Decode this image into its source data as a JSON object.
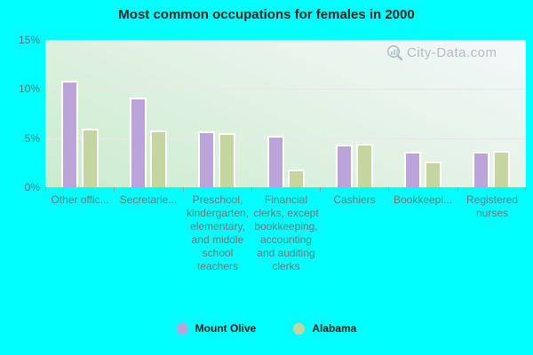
{
  "title": "Most common occupations for females in 2000",
  "watermark": {
    "text": "City-Data.com",
    "icon": "magnifier-with-bars"
  },
  "colors": {
    "background": "#00ffff",
    "mount_olive_bar": "#bba4da",
    "alabama_bar": "#c4d59f",
    "bar_border": "#ffffff",
    "gridline": "#eee3ee",
    "axis_text": "#6d7878",
    "title_text": "#1b2424",
    "legend_text": "#101c1c",
    "watermark_text": "#a3aeb9"
  },
  "chart_data": {
    "type": "bar",
    "title": "Most common occupations for females in 2000",
    "categories": [
      "Other offic...",
      "Secretarie...",
      "Preschool, kindergarten, elementary, and middle school teachers",
      "Financial clerks, except bookkeeping, accounting and auditing clerks",
      "Cashiers",
      "Bookkeepi...",
      "Registered nurses"
    ],
    "series": [
      {
        "name": "Mount Olive",
        "color": "#bba4da",
        "values": [
          10.8,
          9.1,
          5.7,
          5.2,
          4.3,
          3.6,
          3.6
        ]
      },
      {
        "name": "Alabama",
        "color": "#c4d59f",
        "values": [
          6.0,
          5.8,
          5.5,
          1.8,
          4.4,
          2.6,
          3.7
        ]
      }
    ],
    "xlabel": "",
    "ylabel": "",
    "ylim": [
      0,
      15
    ],
    "y_ticks": [
      "0%",
      "5%",
      "10%",
      "15%"
    ],
    "gridlines_at": [
      5,
      10
    ],
    "grid": "horizontal",
    "legend_position": "bottom"
  },
  "legend": {
    "items": [
      {
        "label": "Mount Olive",
        "color": "#bba4da"
      },
      {
        "label": "Alabama",
        "color": "#c4d59f"
      }
    ]
  }
}
